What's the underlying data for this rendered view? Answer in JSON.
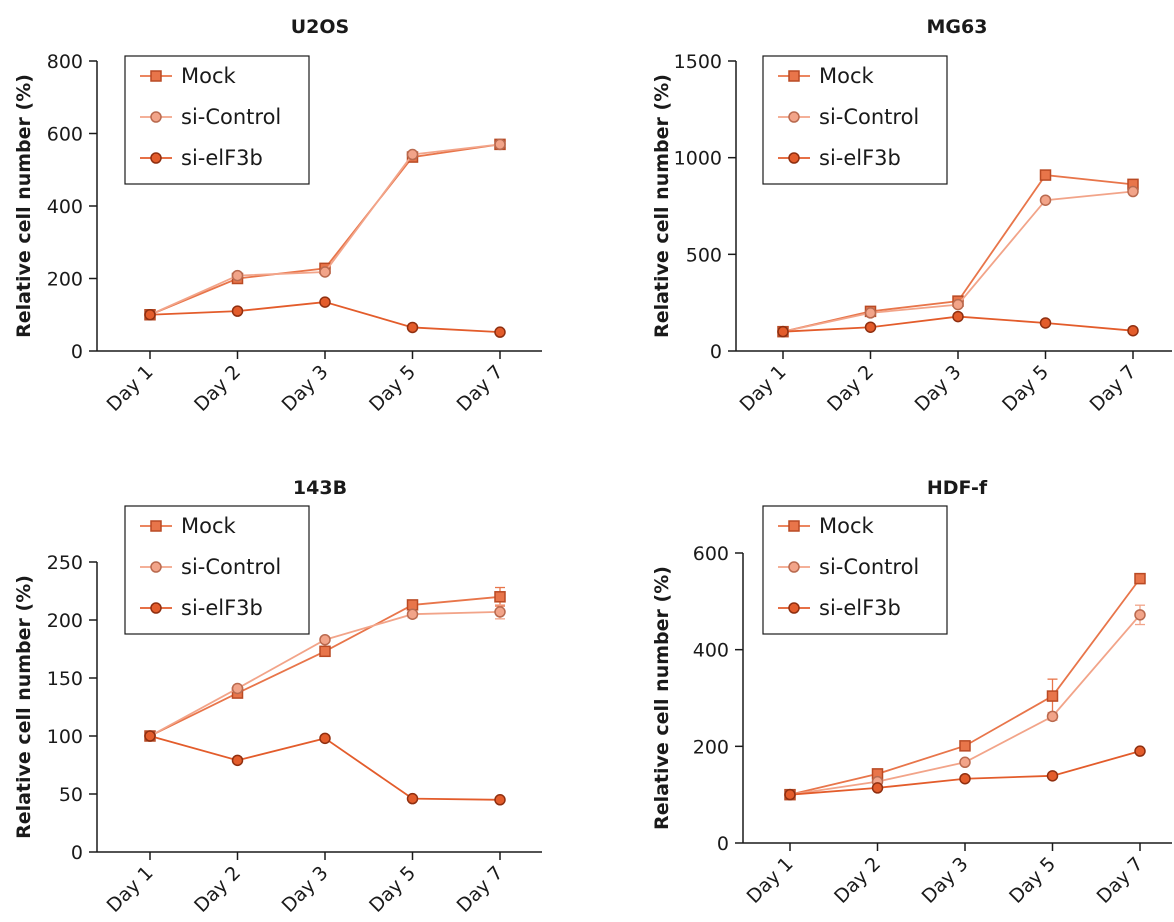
{
  "colors": {
    "mock": "#e8754a",
    "si_control": "#f2a489",
    "si_eif3b": "#e35c2b",
    "axis": "#1a1a1a"
  },
  "chart_data": [
    {
      "type": "line",
      "title": "U2OS",
      "ylabel": "Relative cell number (%)",
      "xlabel": "",
      "categories": [
        "Day 1",
        "Day 2",
        "Day 3",
        "Day 5",
        "Day 7"
      ],
      "ylim": [
        0,
        800
      ],
      "yticks": [
        0,
        200,
        400,
        600,
        800
      ],
      "legend": "top-left",
      "series": [
        {
          "name": "Mock",
          "marker": "square",
          "values": [
            100,
            200,
            228,
            535,
            570
          ]
        },
        {
          "name": "si-Control",
          "marker": "circle",
          "values": [
            100,
            208,
            218,
            542,
            570
          ]
        },
        {
          "name": "si-elF3b",
          "marker": "circle-filled",
          "values": [
            100,
            110,
            135,
            65,
            52
          ]
        }
      ]
    },
    {
      "type": "line",
      "title": "MG63",
      "ylabel": "Relative cell number (%)",
      "xlabel": "",
      "categories": [
        "Day 1",
        "Day 2",
        "Day 3",
        "Day 5",
        "Day 7"
      ],
      "ylim": [
        0,
        1500
      ],
      "yticks": [
        0,
        500,
        1000,
        1500
      ],
      "legend": "top-left",
      "series": [
        {
          "name": "Mock",
          "marker": "square",
          "values": [
            100,
            205,
            258,
            910,
            862
          ]
        },
        {
          "name": "si-Control",
          "marker": "circle",
          "values": [
            100,
            197,
            240,
            780,
            825
          ]
        },
        {
          "name": "si-elF3b",
          "marker": "circle-filled",
          "values": [
            100,
            123,
            178,
            145,
            105
          ]
        }
      ]
    },
    {
      "type": "line",
      "title": "143B",
      "ylabel": "Relative cell number (%)",
      "xlabel": "",
      "categories": [
        "Day 1",
        "Day 2",
        "Day 3",
        "Day 5",
        "Day 7"
      ],
      "ylim": [
        0,
        250
      ],
      "yticks": [
        0,
        50,
        100,
        150,
        200,
        250
      ],
      "legend": "top-left",
      "series": [
        {
          "name": "Mock",
          "marker": "square",
          "values": [
            100,
            137,
            173,
            213,
            220
          ],
          "errors": [
            0,
            2,
            2,
            3,
            8
          ]
        },
        {
          "name": "si-Control",
          "marker": "circle",
          "values": [
            100,
            141,
            183,
            205,
            207
          ],
          "errors": [
            0,
            2,
            2,
            3,
            6
          ]
        },
        {
          "name": "si-elF3b",
          "marker": "circle-filled",
          "values": [
            100,
            79,
            98,
            46,
            45
          ]
        }
      ]
    },
    {
      "type": "line",
      "title": "HDF-f",
      "ylabel": "Relative cell number (%)",
      "xlabel": "",
      "categories": [
        "Day 1",
        "Day 2",
        "Day 3",
        "Day 5",
        "Day 7"
      ],
      "ylim": [
        0,
        600
      ],
      "yticks": [
        0,
        200,
        400,
        600
      ],
      "legend": "top-left",
      "series": [
        {
          "name": "Mock",
          "marker": "square",
          "values": [
            100,
            143,
            201,
            304,
            547
          ],
          "errors": [
            0,
            4,
            5,
            35,
            10
          ]
        },
        {
          "name": "si-Control",
          "marker": "circle",
          "values": [
            100,
            127,
            167,
            262,
            472
          ],
          "errors": [
            0,
            4,
            5,
            8,
            20
          ]
        },
        {
          "name": "si-elF3b",
          "marker": "circle-filled",
          "values": [
            100,
            114,
            133,
            139,
            190
          ]
        }
      ]
    }
  ]
}
